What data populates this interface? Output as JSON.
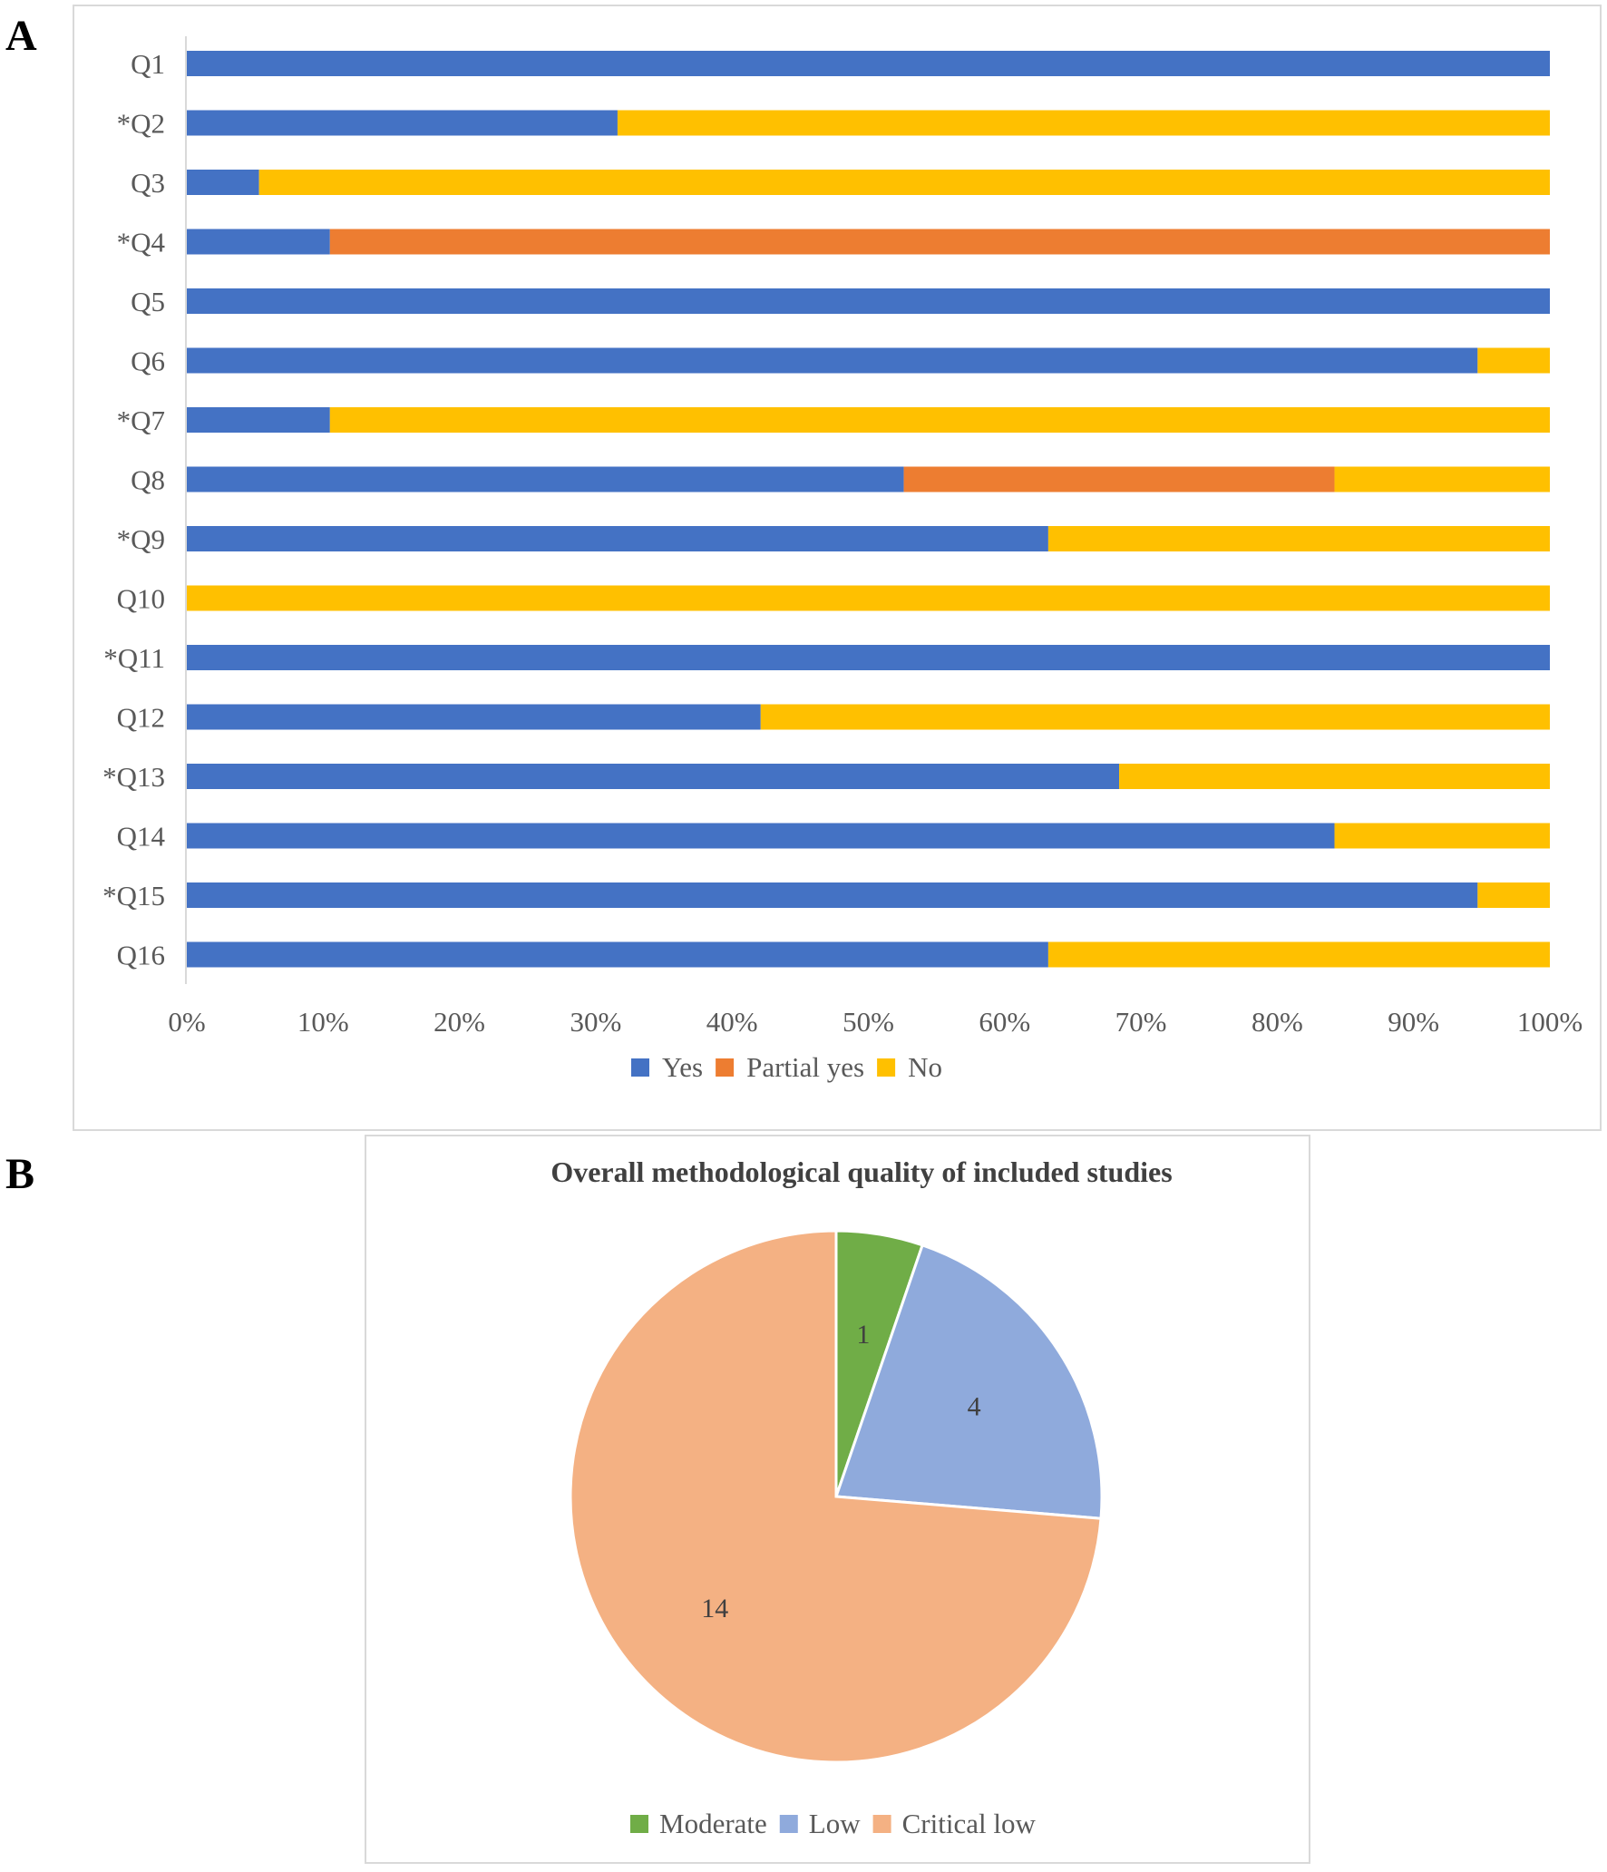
{
  "panel_a_label": "A",
  "panel_b_label": "B",
  "chart_data": [
    {
      "type": "bar",
      "orientation": "horizontal",
      "stacked": "percent",
      "title": "",
      "categories": [
        "Q1",
        "*Q2",
        "Q3",
        "*Q4",
        "Q5",
        "Q6",
        "*Q7",
        "Q8",
        "*Q9",
        "Q10",
        "*Q11",
        "Q12",
        "*Q13",
        "Q14",
        "*Q15",
        "Q16"
      ],
      "series": [
        {
          "name": "Yes",
          "color": "#4472C4",
          "values": [
            100,
            31.6,
            5.3,
            10.5,
            100,
            94.7,
            10.5,
            52.6,
            63.2,
            0,
            100,
            42.1,
            68.4,
            84.2,
            94.7,
            63.2
          ]
        },
        {
          "name": "Partial yes",
          "color": "#ED7D31",
          "values": [
            0,
            0,
            0,
            89.5,
            0,
            0,
            0,
            31.6,
            0,
            0,
            0,
            0,
            0,
            0,
            0,
            0
          ]
        },
        {
          "name": "No",
          "color": "#FFC000",
          "values": [
            0,
            68.4,
            94.7,
            0,
            0,
            5.3,
            89.5,
            15.8,
            36.8,
            100,
            0,
            57.9,
            31.6,
            15.8,
            5.3,
            36.8
          ]
        }
      ],
      "xlim": [
        0,
        100
      ],
      "xticks": [
        "0%",
        "10%",
        "20%",
        "30%",
        "40%",
        "50%",
        "60%",
        "70%",
        "80%",
        "90%",
        "100%"
      ],
      "xlabel": "",
      "ylabel": "",
      "legend": "bottom"
    },
    {
      "type": "pie",
      "title": "Overall methodological quality of included studies",
      "slices": [
        {
          "name": "Moderate",
          "value": 1,
          "color": "#70AD47",
          "label": "1"
        },
        {
          "name": "Low",
          "value": 4,
          "color": "#8FAADC",
          "label": "4"
        },
        {
          "name": "Critical low",
          "value": 14,
          "color": "#F4B183",
          "label": "14"
        }
      ],
      "legend": "bottom"
    }
  ]
}
